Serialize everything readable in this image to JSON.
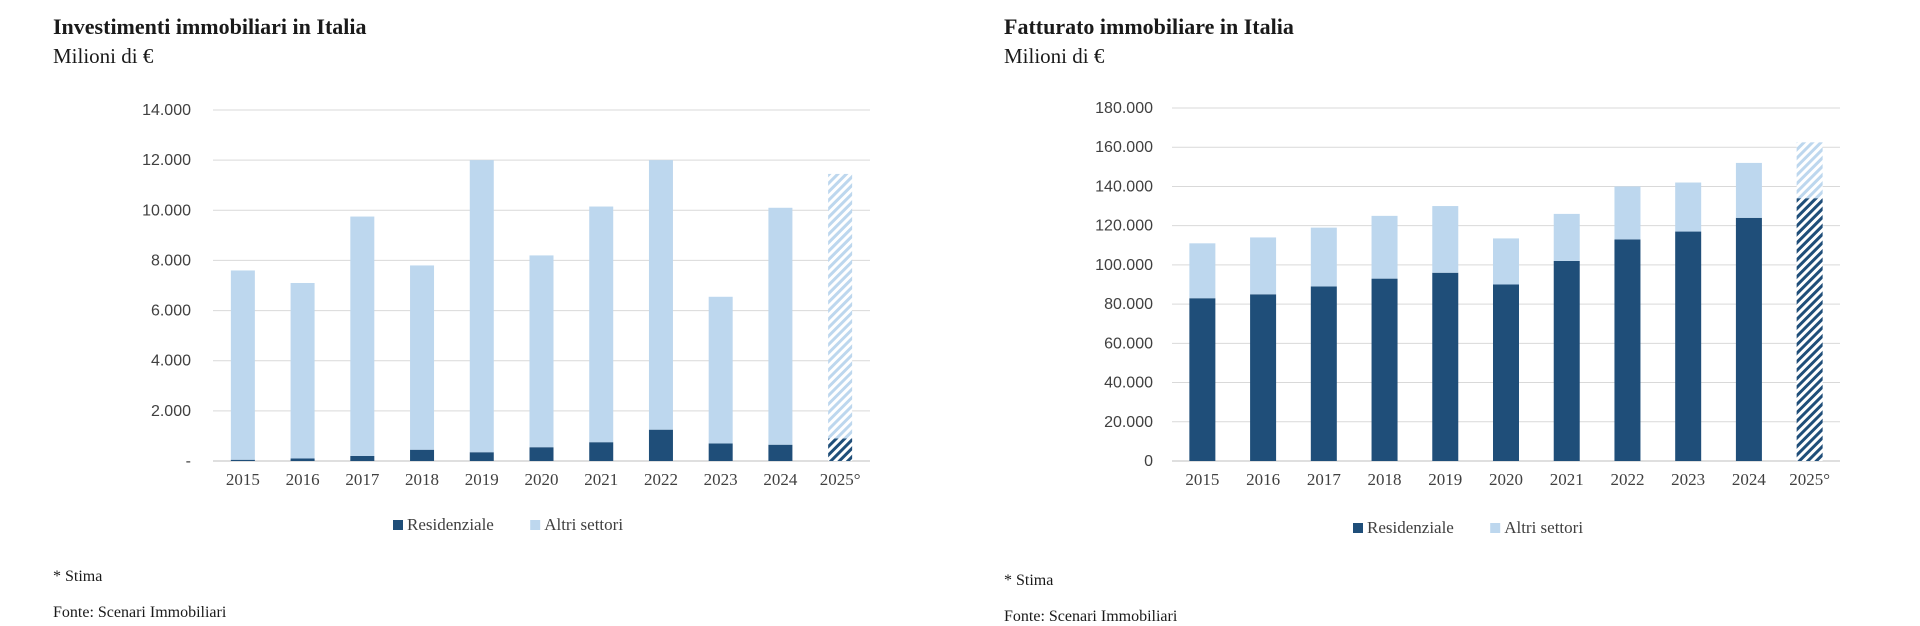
{
  "colors": {
    "residential": "#1f4e79",
    "other": "#bdd7ee",
    "grid": "#d9d9d9",
    "axis": "#bfbfbf"
  },
  "left": {
    "title": "Investimenti immobiliari in Italia",
    "subtitle": "Milioni di €",
    "note": "* Stima",
    "source": "Fonte: Scenari Immobiliari"
  },
  "right": {
    "title": "Fatturato immobiliare in Italia",
    "subtitle": "Milioni di €",
    "note": "* Stima",
    "source": "Fonte: Scenari Immobiliari"
  },
  "chart_data": [
    {
      "type": "bar",
      "stacked": true,
      "title": "Investimenti immobiliari in Italia",
      "subtitle": "Milioni di €",
      "categories": [
        "2015",
        "2016",
        "2017",
        "2018",
        "2019",
        "2020",
        "2021",
        "2022",
        "2023",
        "2024",
        "2025°"
      ],
      "estimated_categories": [
        "2025°"
      ],
      "series": [
        {
          "name": "Residenziale",
          "values": [
            50,
            100,
            200,
            450,
            350,
            550,
            750,
            1250,
            700,
            650,
            900
          ]
        },
        {
          "name": "Altri settori",
          "values": [
            7550,
            7000,
            9550,
            7350,
            11650,
            7650,
            9400,
            10750,
            5850,
            9450,
            10550
          ]
        }
      ],
      "ylim": [
        0,
        14000
      ],
      "yticks": [
        0,
        2000,
        4000,
        6000,
        8000,
        10000,
        12000,
        14000
      ],
      "ytick_labels": [
        "-",
        "2.000",
        "4.000",
        "6.000",
        "8.000",
        "10.000",
        "12.000",
        "14.000"
      ],
      "grid": true,
      "legend": "bottom"
    },
    {
      "type": "bar",
      "stacked": true,
      "title": "Fatturato immobiliare in Italia",
      "subtitle": "Milioni di €",
      "categories": [
        "2015",
        "2016",
        "2017",
        "2018",
        "2019",
        "2020",
        "2021",
        "2022",
        "2023",
        "2024",
        "2025°"
      ],
      "estimated_categories": [
        "2025°"
      ],
      "series": [
        {
          "name": "Residenziale",
          "values": [
            83000,
            85000,
            89000,
            93000,
            96000,
            90000,
            102000,
            113000,
            117000,
            124000,
            134000
          ]
        },
        {
          "name": "Altri settori",
          "values": [
            28000,
            29000,
            30000,
            32000,
            34000,
            23500,
            24000,
            27000,
            25000,
            28000,
            28500
          ]
        }
      ],
      "ylim": [
        0,
        180000
      ],
      "yticks": [
        0,
        20000,
        40000,
        60000,
        80000,
        100000,
        120000,
        140000,
        160000,
        180000
      ],
      "ytick_labels": [
        "0",
        "20.000",
        "40.000",
        "60.000",
        "80.000",
        "100.000",
        "120.000",
        "140.000",
        "160.000",
        "180.000"
      ],
      "grid": true,
      "legend": "bottom"
    }
  ]
}
